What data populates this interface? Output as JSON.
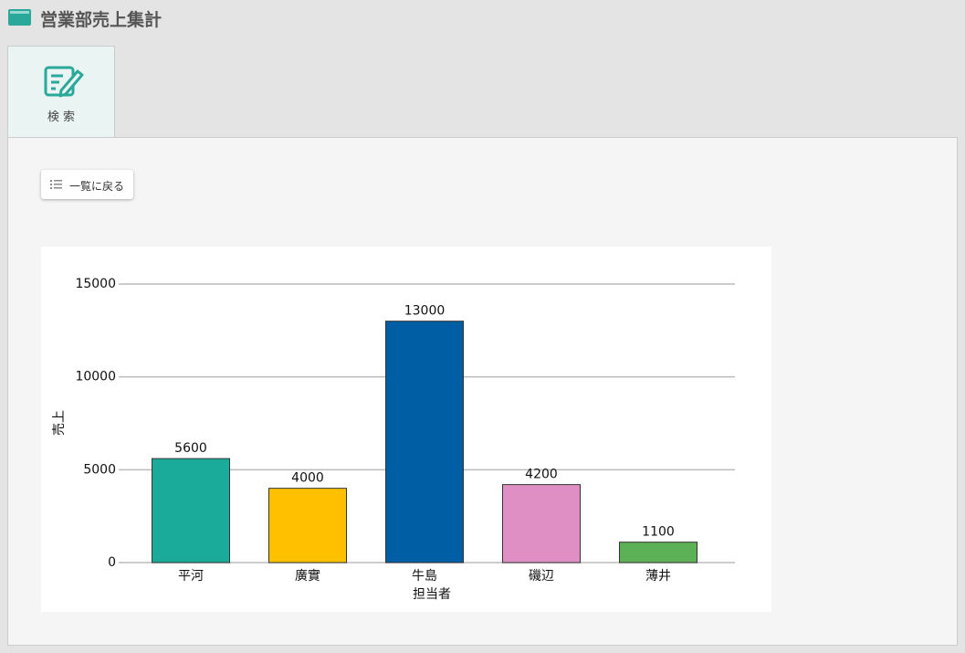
{
  "header": {
    "title": "営業部売上集計"
  },
  "tab": {
    "label": "検 索"
  },
  "back_button": {
    "label": "一覧に戻る"
  },
  "chart_data": {
    "type": "bar",
    "categories": [
      "平河",
      "廣實",
      "牛島",
      "磯辺",
      "薄井"
    ],
    "values": [
      5600,
      4000,
      13000,
      4200,
      1100
    ],
    "colors": [
      "#1aab9b",
      "#ffc000",
      "#005ea5",
      "#e08fc4",
      "#5cb157"
    ],
    "xlabel": "担当者",
    "ylabel": "売上",
    "ylim": [
      0,
      15000
    ],
    "yticks": [
      0,
      5000,
      10000,
      15000
    ],
    "grid": true
  }
}
